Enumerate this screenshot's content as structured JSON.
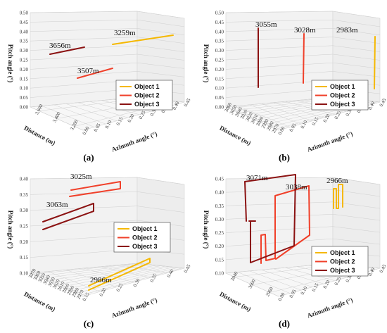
{
  "colors": {
    "object_1": "#f5b800",
    "object_2": "#f0402a",
    "object_3": "#8b1212",
    "grid": "#cfcfcf",
    "pane": "#f2f2f2"
  },
  "legend": [
    "Object 1",
    "Object 2",
    "Object 3"
  ],
  "chart_data": [
    {
      "panel": "(a)",
      "type": "line3d",
      "zlabel": "Pitch angle (°)",
      "ylabel": "Distance (m)",
      "xlabel": "Azimuth angle (°)",
      "z_ticks": [
        "0.00",
        "0.05",
        "0.10",
        "0.15",
        "0.20",
        "0.25",
        "0.30",
        "0.35",
        "0.40",
        "0.45",
        "0.50"
      ],
      "y_ticks": [
        "3,200",
        "3,400",
        "3,600"
      ],
      "x_ticks": [
        "0.00",
        "0.05",
        "0.10",
        "0.15",
        "0.20",
        "0.25",
        "0.30",
        "0.35",
        "0.40",
        "0.45"
      ],
      "annotations": [
        "3656m",
        "3507m",
        "3259m"
      ],
      "legend_position": "lower-right",
      "series": [
        {
          "name": "Object 1",
          "label": "3259m",
          "distance": 3259
        },
        {
          "name": "Object 2",
          "label": "3507m",
          "distance": 3507
        },
        {
          "name": "Object 3",
          "label": "3656m",
          "distance": 3656
        }
      ]
    },
    {
      "panel": "(b)",
      "type": "line3d",
      "zlabel": "Pitch angle (°)",
      "ylabel": "Distance (m)",
      "xlabel": "Azimuth angle (°)",
      "z_ticks": [
        "0.00",
        "0.05",
        "0.10",
        "0.15",
        "0.20",
        "0.25",
        "0.30",
        "0.35",
        "0.40",
        "0.45",
        "0.50"
      ],
      "y_ticks": [
        "2970",
        "2980",
        "2990",
        "3000",
        "3010",
        "3020",
        "3030",
        "3040",
        "3050",
        "3060"
      ],
      "x_ticks": [
        "0.00",
        "0.05",
        "0.10",
        "0.15",
        "0.20",
        "0.25",
        "0.30",
        "0.35",
        "0.40",
        "0.45"
      ],
      "annotations": [
        "3055m",
        "3028m",
        "2983m"
      ],
      "legend_position": "lower-right",
      "series": [
        {
          "name": "Object 1",
          "label": "2983m",
          "distance": 2983
        },
        {
          "name": "Object 2",
          "label": "3028m",
          "distance": 3028
        },
        {
          "name": "Object 3",
          "label": "3055m",
          "distance": 3055
        }
      ]
    },
    {
      "panel": "(c)",
      "type": "line3d",
      "zlabel": "Pitch angle (°)",
      "ylabel": "Distance (m)",
      "xlabel": "Azimuth angle (°)",
      "z_ticks": [
        "0.10",
        "0.15",
        "0.20",
        "0.25",
        "0.30",
        "0.35",
        "0.40"
      ],
      "y_ticks": [
        "2970",
        "2980",
        "2990",
        "3000",
        "3010",
        "3020",
        "3030",
        "3040",
        "3050",
        "3060",
        "3070"
      ],
      "x_ticks": [
        "0.15",
        "0.20",
        "0.25",
        "0.30",
        "0.35",
        "0.40",
        "0.45"
      ],
      "annotations": [
        "3025m",
        "3063m",
        "2986m"
      ],
      "legend_position": "right",
      "series": [
        {
          "name": "Object 1",
          "label": "2986m",
          "distance": 2986
        },
        {
          "name": "Object 2",
          "label": "3025m",
          "distance": 3025
        },
        {
          "name": "Object 3",
          "label": "3063m",
          "distance": 3063
        }
      ]
    },
    {
      "panel": "(d)",
      "type": "line3d",
      "zlabel": "Pitch angle (°)",
      "ylabel": "Distance (m)",
      "xlabel": "Azimuth angle (°)",
      "z_ticks": [
        "0.10",
        "0.15",
        "0.20",
        "0.25",
        "0.30",
        "0.35",
        "0.40",
        "0.45"
      ],
      "y_ticks": [
        "2960",
        "3000",
        "3040"
      ],
      "x_ticks": [
        "0.00",
        "0.05",
        "0.10",
        "0.15",
        "0.20",
        "0.25",
        "0.30",
        "0.35",
        "0.40",
        "0.45"
      ],
      "annotations": [
        "3071m",
        "3038m",
        "2966m"
      ],
      "legend_position": "lower-right",
      "series": [
        {
          "name": "Object 1",
          "label": "2966m",
          "distance": 2966
        },
        {
          "name": "Object 2",
          "label": "3038m",
          "distance": 3038
        },
        {
          "name": "Object 3",
          "label": "3071m",
          "distance": 3071
        }
      ]
    }
  ]
}
